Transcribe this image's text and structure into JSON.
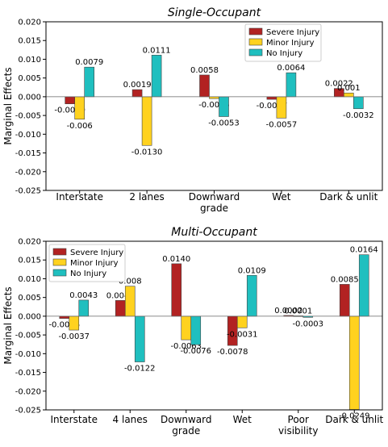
{
  "chart_data": [
    {
      "type": "bar",
      "title": "Single-Occupant",
      "xlabel": "",
      "ylabel": "Marginal Effects",
      "ylim": [
        -0.025,
        0.02
      ],
      "yticks": [
        "0.020",
        "0.015",
        "0.010",
        "0.005",
        "0.000",
        "-0.005",
        "-0.010",
        "-0.015",
        "-0.020",
        "-0.025"
      ],
      "categories": [
        [
          "Interstate"
        ],
        [
          "2 lanes"
        ],
        [
          "Downward",
          "grade"
        ],
        [
          "Wet"
        ],
        [
          "Dark & unlit"
        ]
      ],
      "series": [
        {
          "name": "Severe Injury",
          "color": "#b22222",
          "values": [
            -0.0019,
            0.0019,
            0.0058,
            -0.0007,
            0.0022
          ],
          "labels": [
            "-0.0019",
            "0.0019",
            "0.0058",
            "-0.0007",
            "0.0022"
          ]
        },
        {
          "name": "Minor Injury",
          "color": "#ffd21f",
          "values": [
            -0.006,
            -0.013,
            -0.0005,
            -0.0057,
            0.001
          ],
          "labels": [
            "-0.006",
            "-0.0130",
            "-0.0005",
            "-0.0057",
            "0.001"
          ]
        },
        {
          "name": "No Injury",
          "color": "#1fbfbf",
          "values": [
            0.0079,
            0.0111,
            -0.0053,
            0.0064,
            -0.0032
          ],
          "labels": [
            "0.0079",
            "0.0111",
            "-0.0053",
            "0.0064",
            "-0.0032"
          ]
        }
      ],
      "legend": "top-right",
      "grid": false
    },
    {
      "type": "bar",
      "title": "Multi-Occupant",
      "xlabel": "",
      "ylabel": "Marginal Effects",
      "ylim": [
        -0.025,
        0.02
      ],
      "yticks": [
        "0.020",
        "0.015",
        "0.010",
        "0.005",
        "0.000",
        "-0.005",
        "-0.010",
        "-0.015",
        "-0.020",
        "-0.025"
      ],
      "categories": [
        [
          "Interstate"
        ],
        [
          "4 lanes"
        ],
        [
          "Downward",
          "grade"
        ],
        [
          "Wet"
        ],
        [
          "Poor",
          "visibility"
        ],
        [
          "Dark & unlit"
        ]
      ],
      "series": [
        {
          "name": "Severe Injury",
          "color": "#b22222",
          "values": [
            -0.0006,
            0.0042,
            0.014,
            -0.0078,
            0.0002,
            0.0085
          ],
          "labels": [
            "-0.0006",
            "0.0042",
            "0.0140",
            "-0.0078",
            "0.0002",
            "0.0085"
          ]
        },
        {
          "name": "Minor Injury",
          "color": "#ffd21f",
          "values": [
            -0.0037,
            0.008,
            -0.0063,
            -0.0031,
            0.0001,
            -0.0249
          ],
          "labels": [
            "-0.0037",
            "0.008",
            "-0.0063",
            "-0.0031",
            "0.0001",
            "-0.0249"
          ]
        },
        {
          "name": "No Injury",
          "color": "#1fbfbf",
          "values": [
            0.0043,
            -0.0122,
            -0.0076,
            0.0109,
            -0.0003,
            0.0164
          ],
          "labels": [
            "0.0043",
            "-0.0122",
            "-0.0076",
            "0.0109",
            "-0.0003",
            "0.0164"
          ]
        }
      ],
      "legend": "top-left",
      "grid": false
    }
  ]
}
